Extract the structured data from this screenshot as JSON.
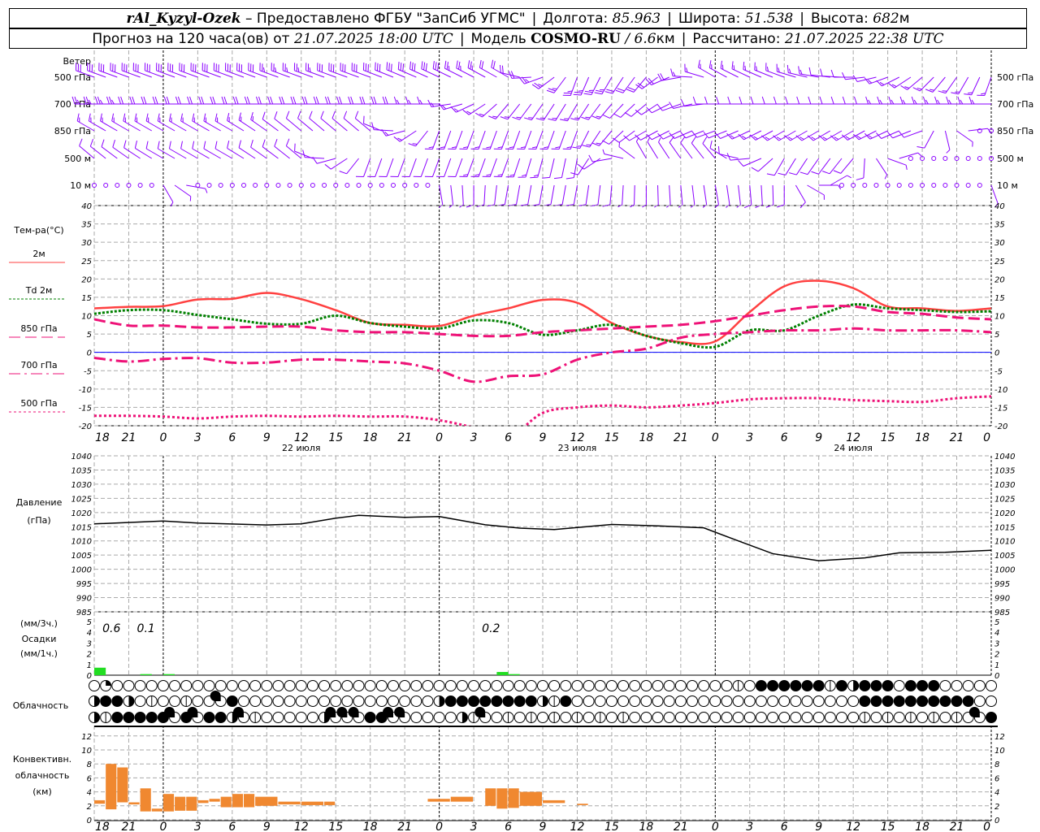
{
  "header": {
    "station": "rAl_Kyzyl-Ozek",
    "provider": " – Предоставлено ФГБУ \"ЗапСиб УГМС\"",
    "lon_label": "Долгота:",
    "lon": "85.963",
    "lat_label": "Широта:",
    "lat": "51.538",
    "alt_label": "Высота:",
    "alt": "682",
    "alt_unit": "м",
    "forecast_label": "Прогноз на 120 часа(ов) от",
    "forecast_start": "21.07.2025 18:00 UTC",
    "model_label": "Модель",
    "model": "COSMO-RU",
    "model_sep": " / ",
    "resolution": "6.6",
    "res_unit": "км",
    "calc_label": "Рассчитано:",
    "calc_time": "21.07.2025 22:38 UTC"
  },
  "labels": {
    "wind": "Ветер",
    "wind_levels": [
      "500 гПа",
      "700 гПа",
      "850 гПа",
      "500 м",
      "10 м"
    ],
    "temp_title": "Тем-ра(°C)",
    "temp_legend": [
      "2м",
      "Td  2м",
      "850 гПа",
      "700 гПа",
      "500 гПа"
    ],
    "pressure_title": "Давление",
    "pressure_unit": "(гПа)",
    "precip_3h": "(мм/3ч.)",
    "precip_title": "Осадки",
    "precip_1h": "(мм/1ч.)",
    "cloud_title": "Облачность",
    "conv_title_1": "Конвективн.",
    "conv_title_2": "облачность",
    "conv_unit": "(км)"
  },
  "colors": {
    "wind": "#8a00ff",
    "t2m": "#ff4040",
    "td": "#008000",
    "t850": "#ee1177",
    "t700": "#ee1177",
    "t500": "#ee1177",
    "zero": "#0000ff",
    "precip": "#22dd22",
    "conv": "#f08830"
  },
  "chart_data": [
    {
      "type": "line",
      "title": "Тем-ра(°C)",
      "x_hours": [
        0,
        3,
        6,
        9,
        12,
        15,
        18,
        21,
        24,
        27,
        30,
        33,
        36,
        39,
        42,
        45,
        48,
        51,
        54,
        57,
        60,
        63,
        66,
        69,
        72,
        75,
        78
      ],
      "ylim": [
        -20,
        40
      ],
      "yticks": [
        40,
        35,
        30,
        25,
        20,
        15,
        10,
        5,
        0,
        -5,
        -10,
        -15,
        -20
      ],
      "series": [
        {
          "name": "2м",
          "values": [
            12,
            12.4,
            12.6,
            14.4,
            14.6,
            16.2,
            14.5,
            11.5,
            8,
            7.5,
            7.2,
            10,
            12,
            14.3,
            13.5,
            8,
            4.5,
            2.8,
            3,
            11,
            18,
            19.5,
            17.5,
            12.5,
            12,
            11.3,
            12
          ]
        },
        {
          "name": "Td 2м",
          "values": [
            10.5,
            11.5,
            11.5,
            10.2,
            9,
            7.8,
            7.8,
            10,
            8,
            7,
            6.5,
            8.7,
            8,
            4.8,
            6,
            7.5,
            4.5,
            2.5,
            1.5,
            6,
            6,
            10,
            13,
            12,
            11.5,
            11,
            11.2
          ]
        },
        {
          "name": "850 гПа",
          "values": [
            9,
            7.3,
            7.3,
            6.8,
            6.8,
            7,
            7,
            6,
            5.5,
            5.5,
            5,
            4.5,
            4.5,
            5.5,
            6,
            6.5,
            7,
            7.5,
            8.5,
            10,
            11.5,
            12.5,
            12.5,
            11,
            10.5,
            9.5,
            9
          ]
        },
        {
          "name": "700 гПа",
          "values": [
            -1.5,
            -2.5,
            -1.8,
            -1.6,
            -2.8,
            -2.8,
            -2,
            -2,
            -2.5,
            -3,
            -5,
            -8,
            -6.5,
            -6,
            -2,
            0,
            1,
            4,
            5,
            5.5,
            6,
            6,
            6.5,
            6,
            6,
            6,
            5.5
          ]
        },
        {
          "name": "500 гПа",
          "values": [
            -17.3,
            -17.3,
            -17.5,
            -18,
            -17.5,
            -17.3,
            -17.5,
            -17.3,
            -17.5,
            -17.5,
            -18.5,
            -20.5,
            -23,
            -16.5,
            -15,
            -14.5,
            -15,
            -14.5,
            -13.8,
            -12.8,
            -12.5,
            -12.5,
            -13,
            -13.3,
            -13.5,
            -12.5,
            -12
          ]
        }
      ],
      "xtick_labels": [
        "18",
        "21",
        "0",
        "3",
        "6",
        "9",
        "12",
        "15",
        "18",
        "21",
        "0",
        "3",
        "6",
        "9",
        "12",
        "15",
        "18",
        "21",
        "0",
        "3",
        "6",
        "9",
        "12",
        "15",
        "18",
        "21",
        "0"
      ],
      "date_labels": [
        "22 июля",
        "23 июля",
        "24 июля"
      ]
    },
    {
      "type": "line",
      "title": "Давление (гПа)",
      "ylim": [
        985,
        1040
      ],
      "yticks": [
        1040,
        1035,
        1030,
        1025,
        1020,
        1015,
        1010,
        1005,
        1000,
        995,
        990,
        985
      ],
      "points": [
        [
          0,
          1016
        ],
        [
          6,
          1017
        ],
        [
          9,
          1016.3
        ],
        [
          15,
          1015.6
        ],
        [
          18,
          1016
        ],
        [
          21,
          1018
        ],
        [
          23,
          1019
        ],
        [
          27,
          1018.3
        ],
        [
          30,
          1018.6
        ],
        [
          34,
          1015.7
        ],
        [
          37,
          1014.5
        ],
        [
          40,
          1014
        ],
        [
          45,
          1015.8
        ],
        [
          49,
          1015.3
        ],
        [
          53,
          1014.6
        ],
        [
          56,
          1010
        ],
        [
          59,
          1005.5
        ],
        [
          63,
          1003
        ],
        [
          67,
          1004
        ],
        [
          70,
          1005.8
        ],
        [
          74,
          1006
        ],
        [
          78,
          1006.7
        ]
      ]
    },
    {
      "type": "bar",
      "title": "Осадки",
      "ylim": [
        0,
        5
      ],
      "yticks": [
        5,
        4,
        3,
        2,
        1,
        0
      ],
      "bars_1h": [
        [
          0,
          0.7
        ],
        [
          4,
          0.1
        ],
        [
          6,
          0.1
        ],
        [
          35,
          0.3
        ],
        [
          36,
          0.1
        ]
      ],
      "totals_3h": [
        {
          "h": 1.5,
          "text": "0.6"
        },
        {
          "h": 4.5,
          "text": "0.1"
        },
        {
          "h": 34.5,
          "text": "0.2"
        }
      ]
    },
    {
      "type": "table",
      "title": "Облачность",
      "rows": [
        "01000000000000000000000000000000000000000000000000000000v0444444v424440444000001",
        "24420v00v0034000000000000000002444444442v4000000000000000000000000044444444440000",
        "2v444443434423v000002333443300002v30v0v0v0v0v0v00000000000000000000v0v0v0v0v034424"
      ]
    },
    {
      "type": "bar",
      "title": "Конвективн. облачность (км)",
      "ylim": [
        0,
        13
      ],
      "yticks": [
        12,
        10,
        8,
        6,
        4,
        2,
        0
      ],
      "bars": [
        [
          0,
          1,
          2.3,
          2.8
        ],
        [
          1,
          2,
          1.5,
          8
        ],
        [
          2,
          3,
          2.5,
          7.5
        ],
        [
          3,
          4,
          2.2,
          2.5
        ],
        [
          4,
          5,
          1.2,
          4.5
        ],
        [
          5,
          6,
          1.2,
          1.6
        ],
        [
          6,
          7,
          1.2,
          3.7
        ],
        [
          7,
          8,
          1.3,
          3.3
        ],
        [
          8,
          9,
          1.3,
          3.3
        ],
        [
          9,
          10,
          2.4,
          2.8
        ],
        [
          10,
          11,
          2.6,
          3
        ],
        [
          11,
          12,
          1.8,
          3.3
        ],
        [
          12,
          13,
          1.8,
          3.7
        ],
        [
          13,
          14,
          1.8,
          3.7
        ],
        [
          14,
          16,
          2,
          3.3
        ],
        [
          16,
          18,
          2.2,
          2.6
        ],
        [
          18,
          20,
          2.1,
          2.6
        ],
        [
          20,
          21,
          2.1,
          2.6
        ],
        [
          29,
          31,
          2.6,
          3
        ],
        [
          31,
          33,
          2.6,
          3.3
        ],
        [
          34,
          35,
          2,
          4.5
        ],
        [
          35,
          36,
          1.6,
          4.5
        ],
        [
          36,
          37,
          1.7,
          4.5
        ],
        [
          37,
          39,
          2,
          4
        ],
        [
          39,
          41,
          2.4,
          2.8
        ],
        [
          42,
          43,
          2.1,
          2.3
        ]
      ]
    }
  ],
  "wind": {
    "rows": [
      [
        [
          290,
          30
        ],
        [
          290,
          30
        ],
        [
          290,
          30
        ],
        [
          290,
          25
        ],
        [
          290,
          30
        ],
        [
          295,
          30
        ],
        [
          300,
          20
        ],
        [
          200,
          25
        ],
        [
          220,
          20
        ],
        [
          300,
          15
        ],
        [
          290,
          15
        ],
        [
          270,
          10
        ],
        [
          230,
          15
        ],
        [
          200,
          15
        ]
      ],
      [
        [
          270,
          25
        ],
        [
          270,
          20
        ],
        [
          270,
          20
        ],
        [
          270,
          20
        ],
        [
          270,
          20
        ],
        [
          270,
          15
        ],
        [
          220,
          15
        ],
        [
          210,
          15
        ],
        [
          230,
          10
        ],
        [
          270,
          10
        ],
        [
          270,
          10
        ],
        [
          270,
          10
        ],
        [
          270,
          15
        ],
        [
          270,
          15
        ]
      ],
      [
        [
          300,
          15
        ],
        [
          300,
          15
        ],
        [
          300,
          15
        ],
        [
          310,
          10
        ],
        [
          310,
          10
        ],
        [
          200,
          15
        ],
        [
          200,
          15
        ],
        [
          200,
          15
        ],
        [
          240,
          10
        ],
        [
          250,
          10
        ],
        [
          240,
          15
        ],
        [
          240,
          15
        ],
        [
          250,
          10
        ],
        [
          0,
          0
        ]
      ],
      [
        [
          310,
          10
        ],
        [
          300,
          10
        ],
        [
          300,
          10
        ],
        [
          310,
          10
        ],
        [
          200,
          10
        ],
        [
          200,
          10
        ],
        [
          200,
          15
        ],
        [
          190,
          10
        ],
        [
          330,
          5
        ],
        [
          320,
          10
        ],
        [
          210,
          10
        ],
        [
          220,
          10
        ],
        [
          0,
          0
        ],
        [
          0,
          0
        ]
      ],
      [
        [
          0,
          0
        ],
        [
          150,
          5
        ],
        [
          0,
          0
        ],
        [
          0,
          0
        ],
        [
          0,
          0
        ],
        [
          170,
          5
        ],
        [
          190,
          10
        ],
        [
          190,
          10
        ],
        [
          180,
          5
        ],
        [
          170,
          5
        ],
        [
          180,
          10
        ],
        [
          0,
          0
        ],
        [
          0,
          0
        ],
        [
          160,
          5
        ]
      ]
    ]
  }
}
